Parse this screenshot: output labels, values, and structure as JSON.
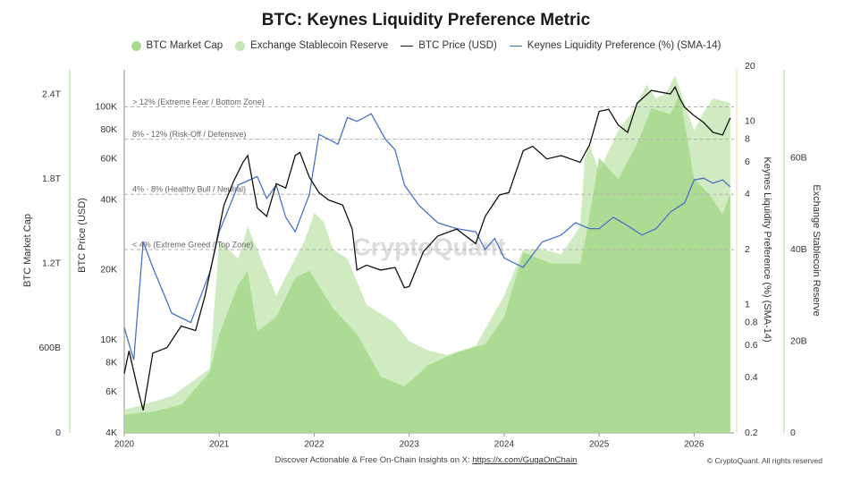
{
  "title": "BTC: Keynes Liquidity Preference Metric",
  "legend": [
    {
      "label": "BTC Market Cap",
      "kind": "dot",
      "color": "#a9d98f"
    },
    {
      "label": "Exchange Stablecoin Reserve",
      "kind": "dot",
      "color": "#c5e6b3"
    },
    {
      "label": "BTC Price (USD)",
      "kind": "line",
      "color": "#111111"
    },
    {
      "label": "Keynes Liquidity Preference (%) (SMA-14)",
      "kind": "line",
      "color": "#4a72c4"
    }
  ],
  "footer": {
    "text": "Discover Actionable & Free On-Chain Insights on X: ",
    "link": "https://x.com/GugaOnChain"
  },
  "copyright": "© CryptoQuant. All rights reserved",
  "watermark": "CryptoQuant",
  "chart_data": {
    "type": "line",
    "x_ticks": [
      "2020",
      "2021",
      "2022",
      "2023",
      "2024",
      "2025",
      "2026"
    ],
    "x_range": [
      2020.0,
      2026.42
    ],
    "axes": {
      "market_cap": {
        "label": "BTC Market Cap",
        "ticks": [
          "0",
          "600B",
          "1.2T",
          "1.8T",
          "2.4T"
        ],
        "range": [
          0,
          2600
        ]
      },
      "price": {
        "label": "BTC Price (USD)",
        "ticks": [
          "4K",
          "6K",
          "8K",
          "10K",
          "20K",
          "40K",
          "60K",
          "80K",
          "100K"
        ],
        "scale": "log",
        "range": [
          4000,
          150000
        ]
      },
      "keynes": {
        "label": "Keynes Liquidity Preference (%) (SMA-14)",
        "ticks": [
          "0.2",
          "0.4",
          "0.6",
          "0.8",
          "1",
          "2",
          "4",
          "6",
          "8",
          "10",
          "20"
        ],
        "scale": "log",
        "range": [
          0.2,
          20
        ]
      },
      "stablecoin": {
        "label": "Exchange Stablecoin Reserve",
        "ticks": [
          "0",
          "20B",
          "40B",
          "60B"
        ],
        "range": [
          0,
          80
        ]
      }
    },
    "zones": [
      {
        "label": "> 12% (Extreme Fear / Bottom Zone)",
        "value": 12
      },
      {
        "label": "8% - 12% (Risk-Off / Defensive)",
        "value": 8
      },
      {
        "label": "4% - 8% (Healthy Bull / Neutral)",
        "value": 4
      },
      {
        "label": "< 4% (Extreme Greed / Top Zone)",
        "value": 2
      }
    ],
    "series": [
      {
        "name": "BTC Price (USD)",
        "axis": "price",
        "x": [
          2020.0,
          2020.05,
          2020.15,
          2020.2,
          2020.3,
          2020.45,
          2020.6,
          2020.75,
          2020.85,
          2020.95,
          2021.05,
          2021.15,
          2021.25,
          2021.3,
          2021.4,
          2021.5,
          2021.6,
          2021.7,
          2021.8,
          2021.85,
          2021.95,
          2022.05,
          2022.15,
          2022.3,
          2022.4,
          2022.45,
          2022.55,
          2022.7,
          2022.85,
          2022.95,
          2023.0,
          2023.15,
          2023.3,
          2023.5,
          2023.7,
          2023.8,
          2023.95,
          2024.05,
          2024.2,
          2024.3,
          2024.45,
          2024.6,
          2024.7,
          2024.8,
          2024.9,
          2025.0,
          2025.1,
          2025.2,
          2025.3,
          2025.4,
          2025.55,
          2025.75,
          2025.8,
          2025.85,
          2025.9,
          2026.0,
          2026.1,
          2026.2,
          2026.3,
          2026.38
        ],
        "values": [
          7200,
          9000,
          6000,
          5000,
          8800,
          9300,
          11500,
          11000,
          15500,
          24000,
          38000,
          48000,
          58000,
          62000,
          37000,
          34000,
          47000,
          45000,
          62000,
          64000,
          50000,
          43000,
          40000,
          38000,
          30000,
          20000,
          21000,
          20000,
          20500,
          16800,
          17000,
          24000,
          28000,
          30000,
          26000,
          34000,
          42000,
          43000,
          65000,
          68000,
          60000,
          62000,
          60000,
          58000,
          69000,
          96000,
          98000,
          84000,
          78000,
          104000,
          118000,
          114000,
          122000,
          109000,
          100000,
          92000,
          86000,
          78000,
          76000,
          90000
        ]
      },
      {
        "name": "Keynes Liquidity Preference (%) (SMA-14)",
        "axis": "keynes",
        "x": [
          2020.0,
          2020.1,
          2020.2,
          2020.3,
          2020.5,
          2020.7,
          2020.9,
          2021.0,
          2021.2,
          2021.4,
          2021.5,
          2021.6,
          2021.7,
          2021.8,
          2021.95,
          2022.05,
          2022.15,
          2022.25,
          2022.35,
          2022.45,
          2022.6,
          2022.75,
          2022.85,
          2022.95,
          2023.1,
          2023.3,
          2023.5,
          2023.7,
          2023.8,
          2023.9,
          2024.0,
          2024.2,
          2024.4,
          2024.6,
          2024.75,
          2024.9,
          2025.0,
          2025.15,
          2025.3,
          2025.45,
          2025.6,
          2025.75,
          2025.9,
          2026.0,
          2026.1,
          2026.2,
          2026.3,
          2026.38
        ],
        "values": [
          0.75,
          0.5,
          2.2,
          1.6,
          0.9,
          0.8,
          1.5,
          2.5,
          4.5,
          5.0,
          3.8,
          4.5,
          3.0,
          2.5,
          4.0,
          8.5,
          8.0,
          7.5,
          10.5,
          10.0,
          11.0,
          8.0,
          7.0,
          4.5,
          3.5,
          2.8,
          2.6,
          2.5,
          2.0,
          2.3,
          1.8,
          1.6,
          2.2,
          2.4,
          2.8,
          2.6,
          2.6,
          3.0,
          2.7,
          2.4,
          2.6,
          3.2,
          3.6,
          4.8,
          4.9,
          4.6,
          4.8,
          4.4
        ]
      },
      {
        "name": "BTC Market Cap",
        "axis": "market_cap",
        "x": [
          2020.0,
          2020.3,
          2020.6,
          2020.9,
          2021.0,
          2021.2,
          2021.3,
          2021.4,
          2021.6,
          2021.8,
          2021.95,
          2022.2,
          2022.45,
          2022.7,
          2022.95,
          2023.2,
          2023.5,
          2023.8,
          2024.0,
          2024.2,
          2024.5,
          2024.8,
          2024.85,
          2025.0,
          2025.2,
          2025.4,
          2025.55,
          2025.75,
          2025.85,
          2026.0,
          2026.15,
          2026.3,
          2026.38
        ],
        "values": [
          130,
          150,
          200,
          430,
          700,
          1050,
          1150,
          720,
          820,
          1100,
          1150,
          880,
          700,
          400,
          330,
          480,
          570,
          630,
          820,
          1280,
          1200,
          1200,
          1350,
          1950,
          1800,
          2050,
          2300,
          2260,
          2400,
          1800,
          1700,
          1550,
          1700
        ]
      },
      {
        "name": "Exchange Stablecoin Reserve",
        "axis": "stablecoin",
        "x": [
          2020.0,
          2020.5,
          2020.9,
          2021.0,
          2021.2,
          2021.3,
          2021.6,
          2021.9,
          2022.0,
          2022.1,
          2022.2,
          2022.35,
          2022.55,
          2022.85,
          2023.0,
          2023.2,
          2023.4,
          2023.7,
          2024.0,
          2024.2,
          2024.4,
          2024.6,
          2024.8,
          2024.85,
          2024.9,
          2025.0,
          2025.2,
          2025.35,
          2025.5,
          2025.6,
          2025.7,
          2025.8,
          2026.0,
          2026.1,
          2026.2,
          2026.38
        ],
        "values": [
          5,
          8,
          14,
          42,
          38,
          45,
          30,
          42,
          48,
          46,
          40,
          38,
          28,
          24,
          20,
          18,
          17,
          19,
          30,
          40,
          40,
          39,
          45,
          60,
          63,
          57,
          66,
          70,
          76,
          73,
          74,
          78,
          66,
          70,
          73,
          72
        ]
      }
    ]
  }
}
